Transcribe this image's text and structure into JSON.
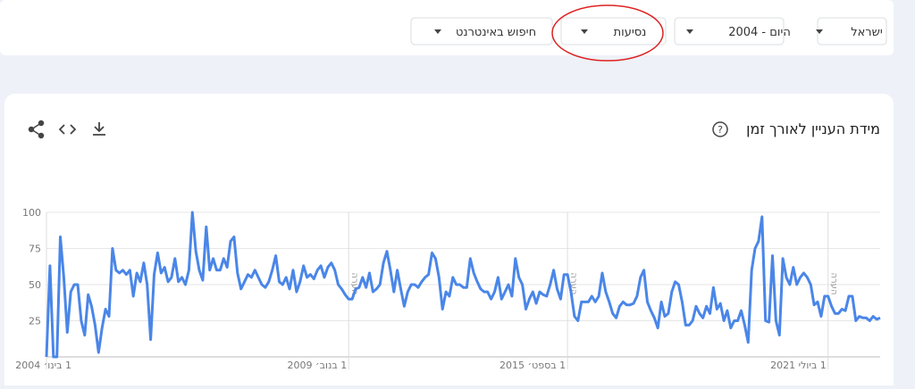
{
  "filters": [
    "ישראל",
    "היום - 2004",
    "נסיעות",
    "חיפוש באינטרנט"
  ],
  "chart_data": {
    "type": "line",
    "title": "מידת העניין לאורך זמן",
    "color": "#4a86e8",
    "grid": true,
    "ylim": [
      0,
      100
    ],
    "yticks": [
      25,
      50,
      75,
      100
    ],
    "xlim": [
      0,
      240
    ],
    "xticks": [
      {
        "value": 0,
        "label": "1 בינו׳ 2004"
      },
      {
        "value": 87,
        "label": "1 בנוב׳ 2009"
      },
      {
        "value": 150,
        "label": "1 בספט׳ 2015"
      },
      {
        "value": 225,
        "label": "1 ביולי 2021"
      }
    ],
    "annotations": [
      "הערה",
      "הערה",
      "הערה"
    ],
    "values": [
      0,
      63,
      0,
      0,
      83,
      55,
      17,
      45,
      50,
      50,
      25,
      15,
      43,
      35,
      22,
      3,
      20,
      33,
      28,
      75,
      60,
      58,
      60,
      57,
      60,
      42,
      58,
      52,
      65,
      50,
      12,
      57,
      72,
      58,
      62,
      52,
      55,
      68,
      52,
      55,
      50,
      60,
      100,
      73,
      60,
      53,
      90,
      60,
      68,
      60,
      60,
      68,
      62,
      80,
      83,
      58,
      47,
      52,
      57,
      55,
      60,
      55,
      50,
      48,
      52,
      60,
      70,
      52,
      50,
      55,
      47,
      60,
      45,
      52,
      63,
      55,
      57,
      54,
      60,
      63,
      55,
      62,
      65,
      60,
      50,
      47,
      43,
      40,
      40,
      47,
      48,
      55,
      48,
      58,
      45,
      47,
      50,
      65,
      73,
      60,
      45,
      60,
      47,
      35,
      45,
      50,
      50,
      48,
      52,
      55,
      57,
      72,
      68,
      55,
      33,
      45,
      42,
      55,
      50,
      50,
      48,
      48,
      68,
      58,
      52,
      47,
      45,
      45,
      40,
      45,
      55,
      40,
      45,
      50,
      42,
      68,
      55,
      50,
      33,
      40,
      45,
      37,
      45,
      43,
      42,
      50,
      60,
      47,
      40,
      57,
      57,
      45,
      28,
      25,
      38,
      38,
      38,
      42,
      38,
      42,
      58,
      45,
      38,
      30,
      27,
      35,
      38,
      36,
      36,
      37,
      42,
      55,
      60,
      38,
      32,
      27,
      20,
      38,
      28,
      30,
      45,
      52,
      50,
      38,
      22,
      22,
      25,
      35,
      30,
      27,
      35,
      30,
      48,
      33,
      37,
      25,
      32,
      20,
      25,
      25,
      32,
      22,
      10,
      60,
      75,
      80,
      97,
      25,
      24,
      70,
      25,
      15,
      68,
      55,
      50,
      62,
      50,
      55,
      58,
      55,
      50,
      36,
      38,
      28,
      42,
      42,
      35,
      30,
      30,
      33,
      32,
      42,
      42,
      25,
      28,
      27,
      27,
      25,
      28,
      26,
      27
    ]
  }
}
